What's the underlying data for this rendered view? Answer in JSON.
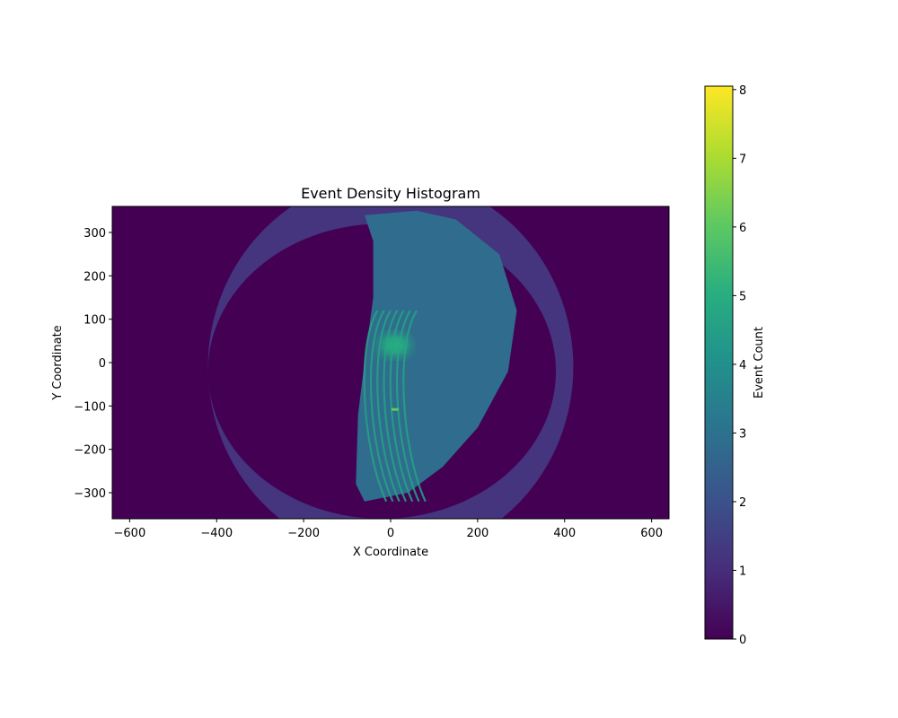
{
  "chart_data": {
    "type": "heatmap",
    "title": "Event Density Histogram",
    "xlabel": "X Coordinate",
    "ylabel": "Y Coordinate",
    "xlim": [
      -640,
      640
    ],
    "ylim": [
      -360,
      360
    ],
    "x_ticks": [
      -600,
      -400,
      -200,
      0,
      200,
      400,
      600
    ],
    "x_tick_labels": [
      "−600",
      "−400",
      "−200",
      "0",
      "200",
      "400",
      "600"
    ],
    "y_ticks": [
      300,
      200,
      100,
      0,
      -100,
      -200,
      -300
    ],
    "y_tick_labels": [
      "300",
      "200",
      "100",
      "0",
      "−100",
      "−200",
      "−300"
    ],
    "colormap": "viridis",
    "colorbar": {
      "label": "Event Count",
      "range": [
        0,
        8.05
      ],
      "ticks": [
        0,
        1,
        2,
        3,
        4,
        5,
        6,
        7,
        8
      ],
      "tick_labels": [
        "0",
        "1",
        "2",
        "3",
        "4",
        "5",
        "6",
        "7",
        "8"
      ]
    },
    "grid": false,
    "regions": [
      {
        "name": "background",
        "shape": "full",
        "count": 0
      },
      {
        "name": "outer-fisheye-ring",
        "shape": "ellipse",
        "cx": 0,
        "cy": -10,
        "rx": 420,
        "ry": 440,
        "count": 1.2
      },
      {
        "name": "inner-dark-disk",
        "shape": "ellipse",
        "cx": -20,
        "cy": -20,
        "rx": 400,
        "ry": 340,
        "count": 0
      },
      {
        "name": "central-scene",
        "shape": "polygon",
        "points": [
          [
            -60,
            340
          ],
          [
            60,
            350
          ],
          [
            150,
            330
          ],
          [
            250,
            250
          ],
          [
            290,
            120
          ],
          [
            270,
            -20
          ],
          [
            200,
            -150
          ],
          [
            120,
            -240
          ],
          [
            40,
            -300
          ],
          [
            -60,
            -320
          ],
          [
            -80,
            -280
          ],
          [
            -75,
            -120
          ],
          [
            -60,
            0
          ],
          [
            -40,
            150
          ],
          [
            -40,
            280
          ]
        ],
        "count": 2.8
      },
      {
        "name": "central-bright-core",
        "shape": "ellipse",
        "cx": 10,
        "cy": 40,
        "rx": 35,
        "ry": 25,
        "count": 5.0
      },
      {
        "name": "hotspot",
        "shape": "point",
        "x": 10,
        "y": -108,
        "count": 6.0
      }
    ],
    "arc_bands": {
      "count": 4.6,
      "offsets_x": [
        -70,
        -55,
        -40,
        -25,
        -10,
        5,
        20
      ],
      "y_range": [
        -320,
        120
      ]
    }
  }
}
